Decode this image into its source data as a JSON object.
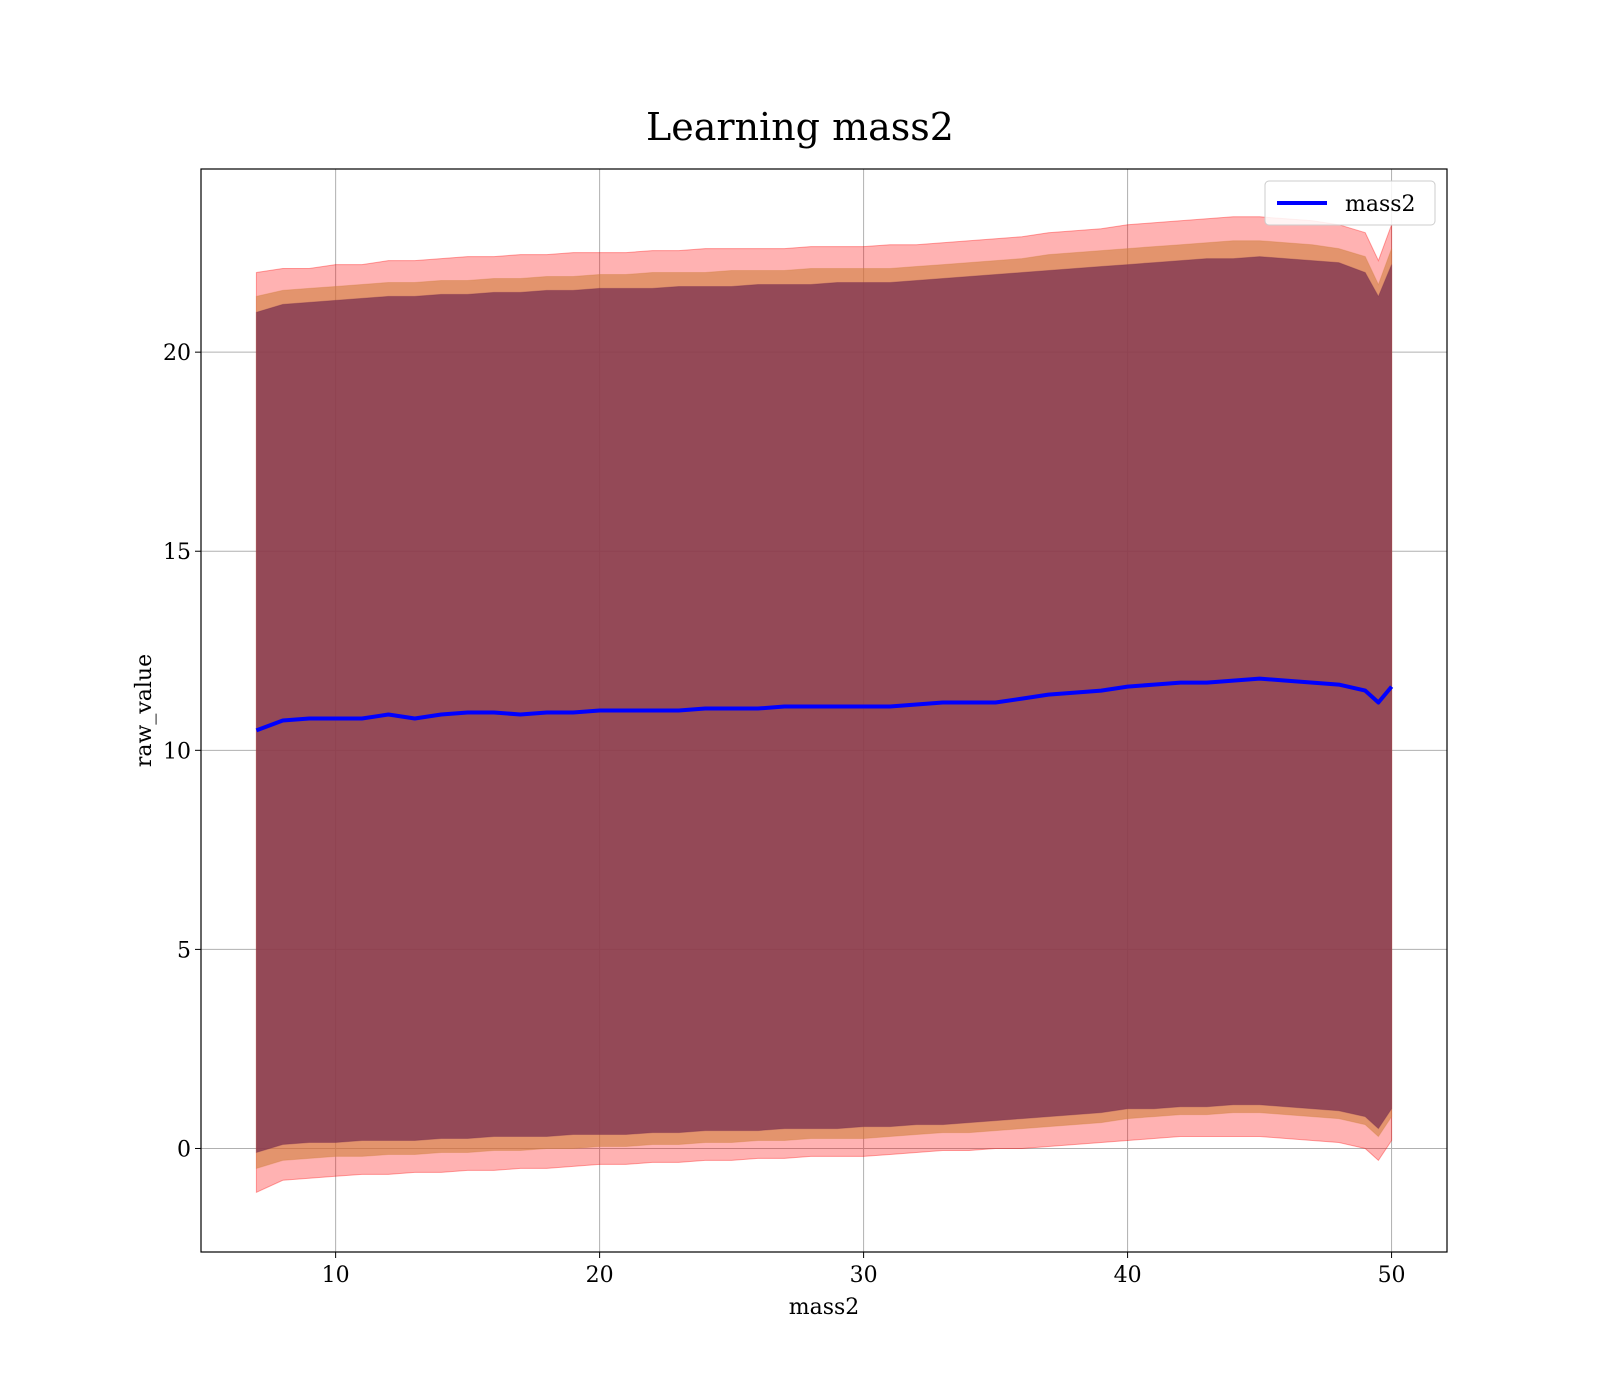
{
  "chart_data": {
    "type": "line",
    "title": "Learning mass2",
    "xlabel": "mass2",
    "ylabel": "raw_value",
    "xlim": [
      4.9,
      52.1
    ],
    "ylim": [
      -2.6,
      24.6
    ],
    "x_ticks": [
      10,
      20,
      30,
      40,
      50
    ],
    "y_ticks": [
      0,
      5,
      10,
      15,
      20
    ],
    "grid": true,
    "legend": {
      "position": "top-right",
      "entries": [
        "mass2"
      ]
    },
    "colors": {
      "line": "#0000ff",
      "band_outer": "#ff0000",
      "band_middle": "#d08040",
      "band_inner": "#7a3050"
    },
    "x": [
      7,
      8,
      9,
      10,
      11,
      12,
      13,
      14,
      15,
      16,
      17,
      18,
      19,
      20,
      21,
      22,
      23,
      24,
      25,
      26,
      27,
      28,
      29,
      30,
      31,
      32,
      33,
      34,
      35,
      36,
      37,
      38,
      39,
      40,
      41,
      42,
      43,
      44,
      45,
      46,
      47,
      48,
      49,
      49.5,
      50
    ],
    "series": [
      {
        "name": "mass2",
        "values": [
          10.5,
          10.75,
          10.8,
          10.8,
          10.8,
          10.9,
          10.8,
          10.9,
          10.95,
          10.95,
          10.9,
          10.95,
          10.95,
          11.0,
          11.0,
          11.0,
          11.0,
          11.05,
          11.05,
          11.05,
          11.1,
          11.1,
          11.1,
          11.1,
          11.1,
          11.15,
          11.2,
          11.2,
          11.2,
          11.3,
          11.4,
          11.45,
          11.5,
          11.6,
          11.65,
          11.7,
          11.7,
          11.75,
          11.8,
          11.75,
          11.7,
          11.65,
          11.5,
          11.2,
          11.6
        ]
      },
      {
        "values": [
          -1.1,
          -0.8,
          -0.75,
          -0.7,
          -0.65,
          -0.65,
          -0.6,
          -0.6,
          -0.55,
          -0.55,
          -0.5,
          -0.5,
          -0.45,
          -0.4,
          -0.4,
          -0.35,
          -0.35,
          -0.3,
          -0.3,
          -0.25,
          -0.25,
          -0.2,
          -0.2,
          -0.2,
          -0.15,
          -0.1,
          -0.05,
          -0.05,
          0.0,
          0.0,
          0.05,
          0.1,
          0.15,
          0.2,
          0.25,
          0.3,
          0.3,
          0.3,
          0.3,
          0.25,
          0.2,
          0.15,
          0.0,
          -0.3,
          0.2
        ]
      },
      {
        "values": [
          22.0,
          22.1,
          22.1,
          22.2,
          22.2,
          22.3,
          22.3,
          22.35,
          22.4,
          22.4,
          22.45,
          22.45,
          22.5,
          22.5,
          22.5,
          22.55,
          22.55,
          22.6,
          22.6,
          22.6,
          22.6,
          22.65,
          22.65,
          22.65,
          22.7,
          22.7,
          22.75,
          22.8,
          22.85,
          22.9,
          23.0,
          23.05,
          23.1,
          23.2,
          23.25,
          23.3,
          23.35,
          23.4,
          23.4,
          23.35,
          23.3,
          23.2,
          23.0,
          22.3,
          23.2
        ]
      },
      {
        "values": [
          -0.5,
          -0.3,
          -0.25,
          -0.2,
          -0.2,
          -0.15,
          -0.15,
          -0.1,
          -0.1,
          -0.05,
          -0.05,
          0.0,
          0.0,
          0.05,
          0.05,
          0.1,
          0.1,
          0.15,
          0.15,
          0.2,
          0.2,
          0.25,
          0.25,
          0.25,
          0.3,
          0.35,
          0.4,
          0.4,
          0.45,
          0.5,
          0.55,
          0.6,
          0.65,
          0.75,
          0.8,
          0.85,
          0.85,
          0.9,
          0.9,
          0.85,
          0.8,
          0.75,
          0.6,
          0.3,
          0.8
        ]
      },
      {
        "values": [
          21.4,
          21.55,
          21.6,
          21.65,
          21.7,
          21.75,
          21.75,
          21.8,
          21.8,
          21.85,
          21.85,
          21.9,
          21.9,
          21.95,
          21.95,
          22.0,
          22.0,
          22.0,
          22.05,
          22.05,
          22.05,
          22.1,
          22.1,
          22.1,
          22.1,
          22.15,
          22.2,
          22.25,
          22.3,
          22.35,
          22.45,
          22.5,
          22.55,
          22.6,
          22.65,
          22.7,
          22.75,
          22.8,
          22.8,
          22.75,
          22.7,
          22.6,
          22.4,
          21.7,
          22.6
        ]
      },
      {
        "values": [
          -0.1,
          0.1,
          0.15,
          0.15,
          0.2,
          0.2,
          0.2,
          0.25,
          0.25,
          0.3,
          0.3,
          0.3,
          0.35,
          0.35,
          0.35,
          0.4,
          0.4,
          0.45,
          0.45,
          0.45,
          0.5,
          0.5,
          0.5,
          0.55,
          0.55,
          0.6,
          0.6,
          0.65,
          0.7,
          0.75,
          0.8,
          0.85,
          0.9,
          1.0,
          1.0,
          1.05,
          1.05,
          1.1,
          1.1,
          1.05,
          1.0,
          0.95,
          0.8,
          0.5,
          1.0
        ]
      },
      {
        "values": [
          21.0,
          21.2,
          21.25,
          21.3,
          21.35,
          21.4,
          21.4,
          21.45,
          21.45,
          21.5,
          21.5,
          21.55,
          21.55,
          21.6,
          21.6,
          21.6,
          21.65,
          21.65,
          21.65,
          21.7,
          21.7,
          21.7,
          21.75,
          21.75,
          21.75,
          21.8,
          21.85,
          21.9,
          21.95,
          22.0,
          22.05,
          22.1,
          22.15,
          22.2,
          22.25,
          22.3,
          22.35,
          22.35,
          22.4,
          22.35,
          22.3,
          22.25,
          22.0,
          21.4,
          22.2
        ]
      }
    ]
  }
}
